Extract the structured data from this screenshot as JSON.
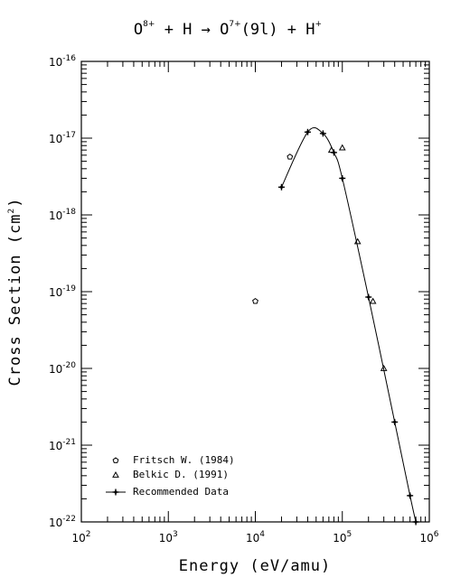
{
  "chart_data": {
    "type": "scatter",
    "title": {
      "part1": "O",
      "sup1": "8+",
      "part2": " + H → O",
      "sup2": "7+",
      "part3": "(9l) + H",
      "sup3": "+"
    },
    "xlabel": "Energy (eV/amu)",
    "ylabel": {
      "main": "Cross Section (cm",
      "sup": "2",
      "end": ")"
    },
    "xscale": "log",
    "yscale": "log",
    "xlim": [
      100,
      1000000
    ],
    "ylim": [
      1e-22,
      1e-16
    ],
    "x_tick_labels": [
      {
        "base": "10",
        "exp": "2"
      },
      {
        "base": "10",
        "exp": "3"
      },
      {
        "base": "10",
        "exp": "4"
      },
      {
        "base": "10",
        "exp": "5"
      },
      {
        "base": "10",
        "exp": "6"
      }
    ],
    "y_tick_labels": [
      {
        "base": "10",
        "exp": "-16"
      },
      {
        "base": "10",
        "exp": "-17"
      },
      {
        "base": "10",
        "exp": "-18"
      },
      {
        "base": "10",
        "exp": "-19"
      },
      {
        "base": "10",
        "exp": "-20"
      },
      {
        "base": "10",
        "exp": "-21"
      },
      {
        "base": "10",
        "exp": "-22"
      }
    ],
    "legend_position": "bottom-left",
    "series": [
      {
        "name": "Fritsch W. (1984)",
        "marker": "pentagon",
        "points": [
          [
            10000,
            7.5e-20
          ],
          [
            25000,
            5.7e-18
          ]
        ]
      },
      {
        "name": "Belkic D. (1991)",
        "marker": "triangle",
        "points": [
          [
            75000,
            7e-18
          ],
          [
            100000,
            7.5e-18
          ],
          [
            150000,
            4.5e-19
          ],
          [
            225000,
            7.5e-20
          ],
          [
            300000,
            1e-20
          ]
        ]
      },
      {
        "name": "Recommended Data",
        "marker": "cross-line",
        "points": [
          [
            20000,
            2.3e-18
          ],
          [
            40000,
            1.2e-17
          ],
          [
            60000,
            1.15e-17
          ],
          [
            80000,
            6.5e-18
          ],
          [
            100000,
            3e-18
          ],
          [
            200000,
            8.5e-20
          ],
          [
            400000,
            2e-21
          ],
          [
            600000,
            2.2e-22
          ],
          [
            700000,
            1e-22
          ]
        ]
      }
    ]
  }
}
